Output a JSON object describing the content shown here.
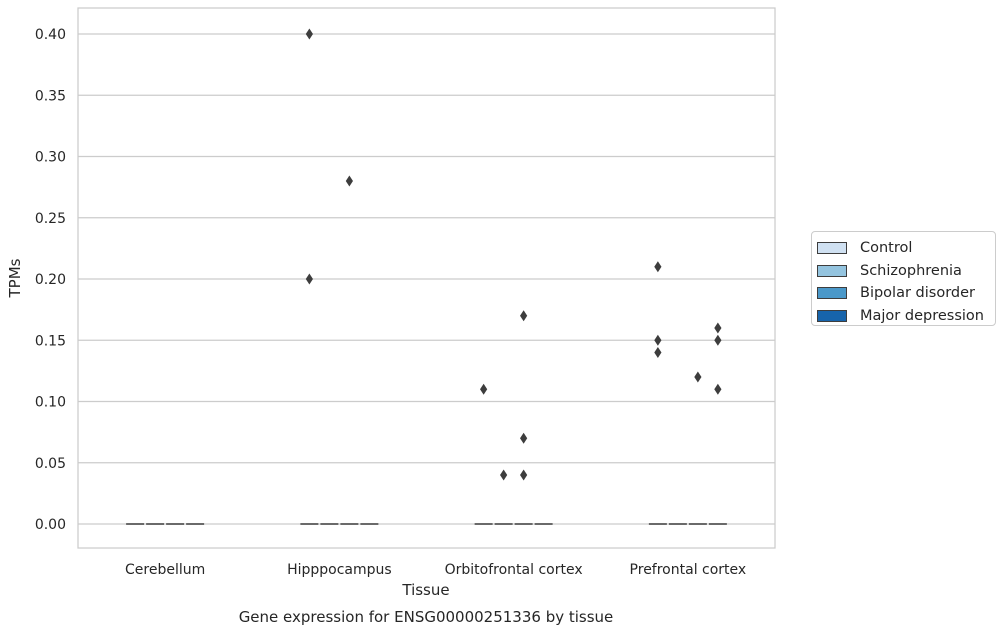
{
  "chart_data": {
    "type": "boxplot",
    "title": "Gene expression for ENSG00000251336 by tissue",
    "xlabel": "Tissue",
    "ylabel": "TPMs",
    "ylim": [
      -0.02,
      0.42
    ],
    "yticks": [
      0.0,
      0.05,
      0.1,
      0.15,
      0.2,
      0.25,
      0.3,
      0.35,
      0.4
    ],
    "ytick_labels": [
      "0.00",
      "0.05",
      "0.10",
      "0.15",
      "0.20",
      "0.25",
      "0.30",
      "0.35",
      "0.40"
    ],
    "grid": true,
    "legend_position": "outside-right",
    "categories": [
      "Cerebellum",
      "Hipppocampus",
      "Orbitofrontal cortex",
      "Prefrontal cortex"
    ],
    "series": [
      {
        "name": "Control",
        "color": "#d0e1f2",
        "medians": [
          0,
          0,
          0,
          0
        ],
        "outliers": [
          [],
          [
            0.4,
            0.2
          ],
          [
            0.11
          ],
          [
            0.21,
            0.15,
            0.14
          ]
        ]
      },
      {
        "name": "Schizophrenia",
        "color": "#94c4df",
        "medians": [
          0,
          0,
          0,
          0
        ],
        "outliers": [
          [],
          [],
          [
            0.04
          ],
          []
        ]
      },
      {
        "name": "Bipolar disorder",
        "color": "#4a98c9",
        "medians": [
          0,
          0,
          0,
          0
        ],
        "outliers": [
          [],
          [
            0.28
          ],
          [
            0.07,
            0.17,
            0.04
          ],
          [
            0.12
          ]
        ]
      },
      {
        "name": "Major depression",
        "color": "#1764ab",
        "medians": [
          0,
          0,
          0,
          0
        ],
        "outliers": [
          [],
          [],
          [],
          [
            0.16,
            0.15,
            0.11
          ]
        ]
      }
    ]
  }
}
